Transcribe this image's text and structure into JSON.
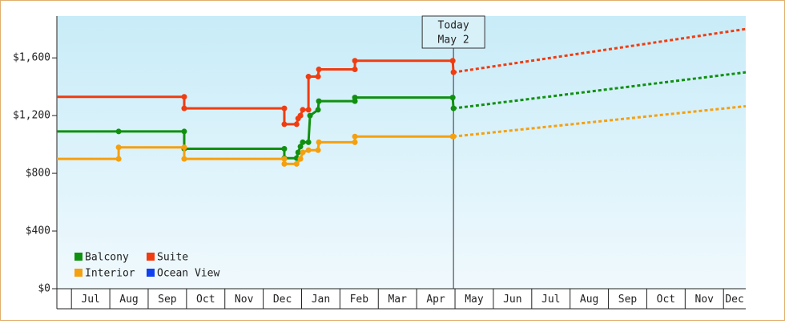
{
  "chart_data": {
    "type": "line",
    "xlim": [
      -0.38,
      17.58
    ],
    "ylim": [
      0,
      1890
    ],
    "yticks": [
      {
        "value": 0,
        "label": "$0"
      },
      {
        "value": 400,
        "label": "$400"
      },
      {
        "value": 800,
        "label": "$800"
      },
      {
        "value": 1200,
        "label": "$1,200"
      },
      {
        "value": 1600,
        "label": "$1,600"
      }
    ],
    "xticks": [
      {
        "value": 0,
        "label": "Jul"
      },
      {
        "value": 1,
        "label": "Aug"
      },
      {
        "value": 2,
        "label": "Sep"
      },
      {
        "value": 3,
        "label": "Oct"
      },
      {
        "value": 4,
        "label": "Nov"
      },
      {
        "value": 5,
        "label": "Dec"
      },
      {
        "value": 6,
        "label": "Jan"
      },
      {
        "value": 7,
        "label": "Feb"
      },
      {
        "value": 8,
        "label": "Mar"
      },
      {
        "value": 9,
        "label": "Apr"
      },
      {
        "value": 10,
        "label": "May"
      },
      {
        "value": 11,
        "label": "Jun"
      },
      {
        "value": 12,
        "label": "Jul"
      },
      {
        "value": 13,
        "label": "Aug"
      },
      {
        "value": 14,
        "label": "Sep"
      },
      {
        "value": 15,
        "label": "Oct"
      },
      {
        "value": 16,
        "label": "Nov"
      },
      {
        "value": 17,
        "label": "Dec"
      }
    ],
    "annotation": {
      "x": 9.96,
      "lines": [
        "Today",
        "May 2"
      ]
    },
    "legend": "lower-left",
    "series": [
      {
        "name": "Balcony",
        "color": "#109010",
        "x": [
          -0.38,
          1.23,
          2.94,
          2.94,
          5.55,
          5.55,
          5.87,
          5.91,
          5.97,
          6.03,
          6.18,
          6.22,
          6.43,
          6.45,
          7.39,
          7.39,
          9.94,
          9.96
        ],
        "values": [
          1090,
          1090,
          1090,
          970,
          970,
          905,
          905,
          945,
          985,
          1015,
          1015,
          1200,
          1240,
          1300,
          1300,
          1325,
          1325,
          1250
        ],
        "forecast": {
          "x": [
            9.96,
            17.58
          ],
          "values": [
            1250,
            1500
          ]
        }
      },
      {
        "name": "Suite",
        "color": "#f03c10",
        "x": [
          -0.38,
          2.94,
          2.94,
          5.55,
          5.55,
          5.87,
          5.91,
          5.97,
          6.03,
          6.18,
          6.18,
          6.43,
          6.45,
          7.39,
          7.39,
          9.94,
          9.96
        ],
        "values": [
          1330,
          1330,
          1250,
          1250,
          1140,
          1140,
          1180,
          1200,
          1240,
          1240,
          1470,
          1470,
          1520,
          1520,
          1580,
          1580,
          1500
        ],
        "forecast": {
          "x": [
            9.96,
            17.58
          ],
          "values": [
            1500,
            1800
          ]
        }
      },
      {
        "name": "Interior",
        "color": "#f5a00f",
        "x": [
          -0.38,
          1.23,
          1.23,
          2.94,
          2.94,
          5.55,
          5.55,
          5.87,
          5.97,
          6.03,
          6.18,
          6.43,
          6.45,
          7.39,
          7.39,
          9.94,
          9.96
        ],
        "values": [
          900,
          900,
          980,
          980,
          900,
          900,
          865,
          865,
          900,
          945,
          960,
          960,
          1015,
          1015,
          1055,
          1055,
          1055
        ],
        "forecast": {
          "x": [
            9.96,
            17.58
          ],
          "values": [
            1055,
            1265
          ]
        }
      },
      {
        "name": "Ocean View",
        "color": "#1040f0",
        "x": [],
        "values": []
      }
    ]
  }
}
